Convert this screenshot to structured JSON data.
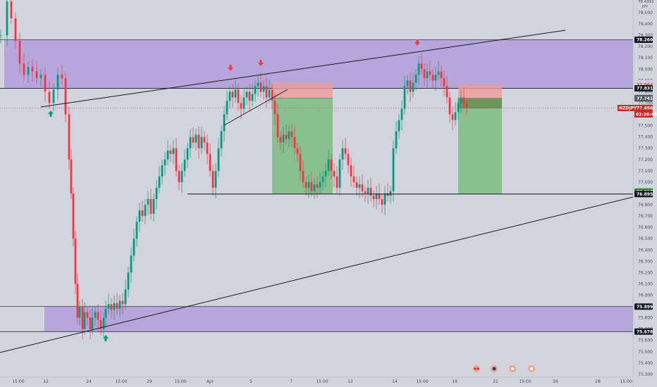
{
  "chart_data": {
    "type": "candlestick",
    "symbol": "NZDJPY",
    "header_right": [
      "78.4391",
      "JPY"
    ],
    "price_axis": {
      "min": 75.2,
      "max": 78.5,
      "ticks": [
        "78.500",
        "78.400",
        "78.300",
        "78.200",
        "78.100",
        "78.000",
        "77.900",
        "77.800",
        "77.700",
        "77.600",
        "77.500",
        "77.400",
        "77.300",
        "77.200",
        "77.100",
        "77.000",
        "76.900",
        "76.800",
        "76.700",
        "76.600",
        "76.500",
        "76.400",
        "76.300",
        "76.200",
        "76.100",
        "76.000",
        "75.900",
        "75.800",
        "75.700",
        "75.600",
        "75.500",
        "75.400",
        "75.300"
      ]
    },
    "time_axis": {
      "labels": [
        "15:00",
        "22",
        "24",
        "15:00",
        "29",
        "15:00",
        "Apr",
        "5",
        "7",
        "15:00",
        "12",
        "14",
        "15:00",
        "19",
        "21",
        "15:00",
        "26",
        "28",
        "15:00"
      ]
    },
    "price_tags": [
      {
        "label": "78.260",
        "value": 78.26,
        "bg": "#131722",
        "fg": "#ffffff"
      },
      {
        "label": "77.878",
        "value": 77.878,
        "bg": "#d1d4dc",
        "fg": "#d04545"
      },
      {
        "label": "77.864",
        "value": 77.864,
        "bg": "#d1d4dc",
        "fg": "#d04545"
      },
      {
        "label": "77.831",
        "value": 77.831,
        "bg": "#131722",
        "fg": "#ffffff"
      },
      {
        "label": "77.745",
        "value": 77.745,
        "bg": "#555b66",
        "fg": "#ffffff"
      },
      {
        "label": "77.741",
        "value": 77.741,
        "bg": "#555b66",
        "fg": "#ffffff"
      },
      {
        "label": "77.656",
        "value": 77.656,
        "bg": "#c62828",
        "fg": "#ffffff"
      },
      {
        "label": "76.917",
        "value": 76.917,
        "bg": "#2e7d32",
        "fg": "#ffffff"
      },
      {
        "label": "76.896",
        "value": 76.896,
        "bg": "#2e7d32",
        "fg": "#ffffff"
      },
      {
        "label": "76.895",
        "value": 76.895,
        "bg": "#131722",
        "fg": "#ffffff"
      },
      {
        "label": "75.899",
        "value": 75.899,
        "bg": "#131722",
        "fg": "#ffffff"
      },
      {
        "label": "75.678",
        "value": 75.678,
        "bg": "#131722",
        "fg": "#ffffff"
      }
    ],
    "countdown": "02:26:48",
    "zones": [
      {
        "kind": "resistance",
        "from": 77.831,
        "to": 78.26,
        "color": "#b39ddb"
      },
      {
        "kind": "support",
        "from": 75.678,
        "to": 75.899,
        "color": "#b39ddb"
      }
    ],
    "positions": [
      {
        "entry": 77.745,
        "stop": 77.878,
        "target": 76.896
      },
      {
        "entry": 77.656,
        "stop": 77.864,
        "target": 76.896
      }
    ],
    "level_line": 76.895,
    "colors": {
      "up": "#089981",
      "down": "#f23645",
      "zone": "#b39ddb",
      "profit": "#4caf50",
      "loss": "#ef9a9a"
    }
  }
}
